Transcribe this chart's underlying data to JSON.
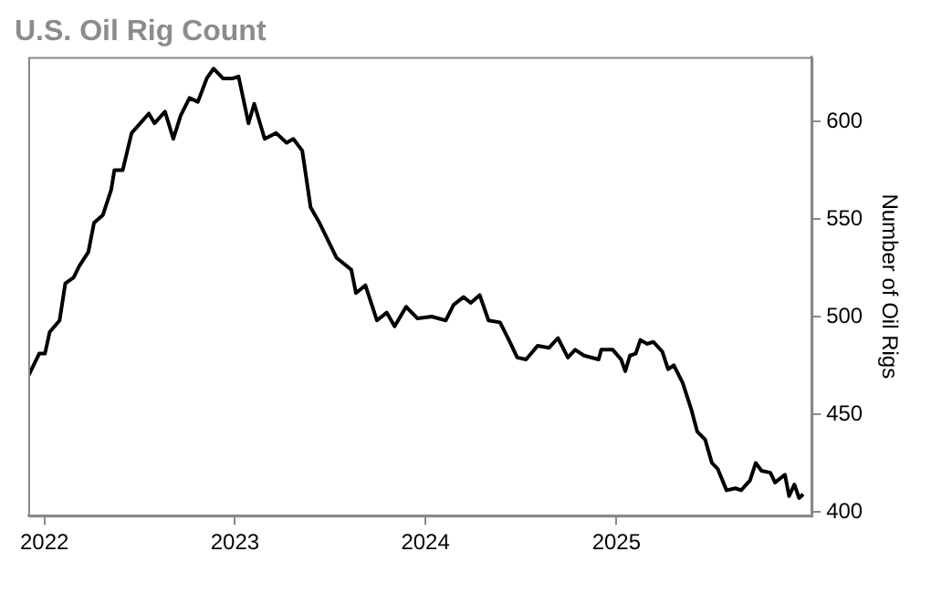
{
  "chart_data": {
    "type": "line",
    "title": "U.S. Oil Rig Count",
    "ylabel": "Number of Oil Rigs",
    "x": [
      "2021-12-02",
      "2021-12-22",
      "2022-01-02",
      "2022-01-11",
      "2022-01-30",
      "2022-02-10",
      "2022-02-26",
      "2022-03-09",
      "2022-03-26",
      "2022-04-06",
      "2022-04-23",
      "2022-05-09",
      "2022-05-15",
      "2022-05-31",
      "2022-06-17",
      "2022-07-20",
      "2022-07-31",
      "2022-08-20",
      "2022-09-05",
      "2022-09-19",
      "2022-10-06",
      "2022-10-22",
      "2022-11-08",
      "2022-11-21",
      "2022-12-09",
      "2022-12-28",
      "2023-01-08",
      "2023-01-27",
      "2023-02-07",
      "2023-02-27",
      "2023-03-21",
      "2023-04-10",
      "2023-04-23",
      "2023-05-10",
      "2023-05-26",
      "2023-06-12",
      "2023-07-15",
      "2023-08-12",
      "2023-08-21",
      "2023-09-08",
      "2023-09-30",
      "2023-10-19",
      "2023-11-03",
      "2023-11-25",
      "2023-12-17",
      "2024-01-13",
      "2024-02-09",
      "2024-02-24",
      "2024-03-14",
      "2024-03-28",
      "2024-04-14",
      "2024-05-01",
      "2024-05-23",
      "2024-06-09",
      "2024-06-25",
      "2024-07-12",
      "2024-08-03",
      "2024-08-25",
      "2024-09-11",
      "2024-09-30",
      "2024-10-14",
      "2024-10-31",
      "2024-11-28",
      "2024-12-03",
      "2024-12-25",
      "2025-01-10",
      "2025-01-18",
      "2025-01-27",
      "2025-02-07",
      "2025-02-16",
      "2025-03-01",
      "2025-03-13",
      "2025-03-30",
      "2025-04-10",
      "2025-04-21",
      "2025-05-08",
      "2025-05-25",
      "2025-06-05",
      "2025-06-20",
      "2025-07-03",
      "2025-07-14",
      "2025-07-31",
      "2025-08-17",
      "2025-08-28",
      "2025-09-14",
      "2025-09-25",
      "2025-10-06",
      "2025-10-23",
      "2025-11-01",
      "2025-11-20",
      "2025-11-28",
      "2025-12-08",
      "2025-12-17",
      "2025-12-25"
    ],
    "series": [
      {
        "color": "#000000",
        "values": [
          470,
          481,
          481,
          492,
          498,
          517,
          520,
          526,
          533,
          548,
          552,
          565,
          575,
          575,
          594,
          604,
          599,
          605,
          591,
          603,
          612,
          610,
          622,
          627,
          622,
          622,
          623,
          599,
          609,
          591,
          594,
          589,
          591,
          585,
          556,
          548,
          530,
          524,
          512,
          516,
          498,
          502,
          495,
          505,
          499,
          500,
          498,
          506,
          510,
          507,
          511,
          498,
          497,
          488,
          479,
          478,
          485,
          484,
          489,
          479,
          483,
          480,
          478,
          483,
          483,
          478,
          472,
          480,
          481,
          488,
          486,
          487,
          482,
          473,
          475,
          466,
          452,
          441,
          437,
          425,
          422,
          411,
          412,
          411,
          416,
          425,
          421,
          420,
          415,
          419,
          408,
          414,
          407,
          409
        ]
      }
    ],
    "xlim": [
      "2021-12-01",
      "2026-01-10"
    ],
    "xticks": [
      {
        "value": "2022-01-01",
        "label": "2022"
      },
      {
        "value": "2023-01-01",
        "label": "2023"
      },
      {
        "value": "2024-01-01",
        "label": "2024"
      },
      {
        "value": "2025-01-01",
        "label": "2025"
      }
    ],
    "ylim": [
      398,
      633
    ],
    "yticks": [
      400,
      450,
      500,
      550,
      600
    ],
    "grid": false,
    "legend": false,
    "marker": "none",
    "line_style": "solid"
  }
}
